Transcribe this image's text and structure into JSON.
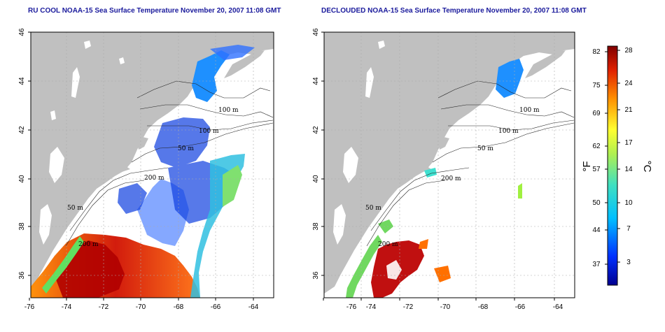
{
  "maps": [
    {
      "title": "RU COOL NOAA-15 Sea Surface Temperature November 20, 2007 11:08 GMT",
      "x_ticks": [
        "-76",
        "-74",
        "-72",
        "-70",
        "-68",
        "-66",
        "-64"
      ],
      "y_ticks": [
        "46",
        "44",
        "42",
        "40",
        "38",
        "36"
      ],
      "contours": [
        "100 m",
        "100 m",
        "50 m",
        "200 m",
        "200 m",
        "50 m"
      ]
    },
    {
      "title": "DECLOUDED NOAA-15 Sea Surface Temperature November 20, 2007 11:08 GMT",
      "x_ticks": [
        "-76",
        "-74",
        "-72",
        "-70",
        "-68",
        "-66",
        "-64"
      ],
      "y_ticks": [
        "46",
        "44",
        "42",
        "40",
        "38",
        "36"
      ],
      "contours": [
        "100 m",
        "100 m",
        "50 m",
        "200 m",
        "200 m",
        "50 m"
      ]
    }
  ],
  "colorbar": {
    "fahrenheit_ticks": [
      "82",
      "75",
      "69",
      "62",
      "57",
      "50",
      "44",
      "37"
    ],
    "celsius_ticks": [
      "28",
      "24",
      "21",
      "17",
      "14",
      "10",
      "7",
      "3"
    ],
    "left_unit": "°F",
    "right_unit": "°C"
  },
  "colors": {
    "land": "#c0c0c0",
    "ocean": "#ffffff",
    "title": "#1a1a9c"
  }
}
